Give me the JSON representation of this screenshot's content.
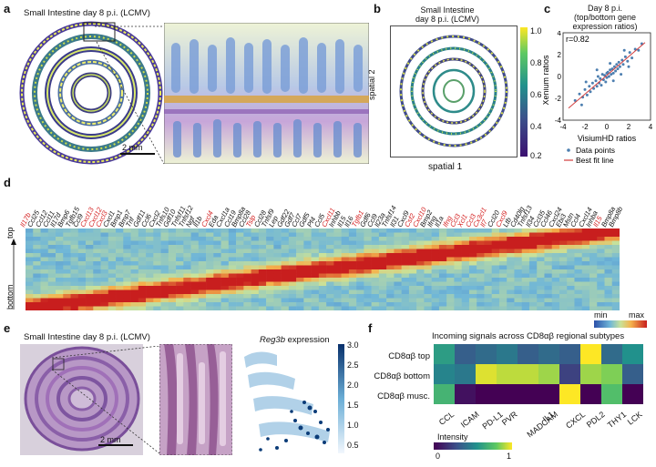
{
  "panels": {
    "a": {
      "label": "a",
      "title": "Small Intestine day 8 p.i. (LCMV)",
      "scale_bar": "2 mm"
    },
    "b": {
      "label": "b",
      "title_line1": "Small Intestine",
      "title_line2": "day 8 p.i. (LCMV)",
      "xlabel": "spatial 1",
      "ylabel": "spatial 2",
      "colorbar_ticks": [
        "1.0",
        "0.8",
        "0.6",
        "0.4",
        "0.2"
      ],
      "colors": {
        "low": "#3b0f70",
        "mid": "#21918c",
        "high": "#fde725"
      }
    },
    "c": {
      "label": "c",
      "title_line1": "Day 8 p.i.",
      "title_line2": "(top/bottom gene",
      "title_line3": "expression ratios)",
      "annotation": "r=0.82",
      "legend_points": "Data points",
      "legend_line": "Best fit line"
    },
    "d": {
      "label": "d",
      "top_label": "top",
      "bottom_label": "bottom",
      "legend_min": "min",
      "legend_max": "max",
      "genes": [
        {
          "name": "Il17b",
          "red": true
        },
        {
          "name": "Ccl25",
          "red": false
        },
        {
          "name": "Ccl12",
          "red": false
        },
        {
          "name": "Ccl11",
          "red": false
        },
        {
          "name": "Il17d",
          "red": false
        },
        {
          "name": "Bmp6",
          "red": false
        },
        {
          "name": "Tgfb15",
          "red": false
        },
        {
          "name": "Ccl9",
          "red": false
        },
        {
          "name": "Cxcl13",
          "red": true
        },
        {
          "name": "Cxcl12",
          "red": true
        },
        {
          "name": "Cxcl3",
          "red": true
        },
        {
          "name": "Cxcl1",
          "red": false
        },
        {
          "name": "Bmp1",
          "red": false
        },
        {
          "name": "Bmp7",
          "red": false
        },
        {
          "name": "Tnf",
          "red": false
        },
        {
          "name": "Gdf11",
          "red": false
        },
        {
          "name": "Ccl6",
          "red": false
        },
        {
          "name": "Cxcl2",
          "red": false
        },
        {
          "name": "Tnfs10",
          "red": false
        },
        {
          "name": "Gdf10",
          "red": false
        },
        {
          "name": "Tnfsf11",
          "red": false
        },
        {
          "name": "Tnfsf12",
          "red": false
        },
        {
          "name": "Ngf",
          "red": false
        },
        {
          "name": "Il1b",
          "red": false
        },
        {
          "name": "Cxcl4",
          "red": true
        },
        {
          "name": "Eda",
          "red": false
        },
        {
          "name": "Cxcl1a",
          "red": false
        },
        {
          "name": "Ccl19",
          "red": false
        },
        {
          "name": "Bmp8a",
          "red": false
        },
        {
          "name": "Ccl28",
          "red": false
        },
        {
          "name": "Tslp",
          "red": true
        },
        {
          "name": "Ccl28",
          "red": false
        },
        {
          "name": "Tnfsf9",
          "red": false
        },
        {
          "name": "Lep",
          "red": false
        },
        {
          "name": "Gdf22",
          "red": false
        },
        {
          "name": "Gdf7",
          "red": false
        },
        {
          "name": "Ccl7",
          "red": false
        },
        {
          "name": "Gdf5",
          "red": false
        },
        {
          "name": "Pf4",
          "red": false
        },
        {
          "name": "Ccl5",
          "red": false
        },
        {
          "name": "Cxcl11",
          "red": true
        },
        {
          "name": "Inhbb",
          "red": false
        },
        {
          "name": "Il15",
          "red": false
        },
        {
          "name": "Il16",
          "red": false
        },
        {
          "name": "Tgfb1",
          "red": true
        },
        {
          "name": "Gdf6",
          "red": false
        },
        {
          "name": "Ccl9",
          "red": false
        },
        {
          "name": "Il23a",
          "red": false
        },
        {
          "name": "Tnfsf14",
          "red": false
        },
        {
          "name": "Il31",
          "red": false
        },
        {
          "name": "Cxcl9",
          "red": false
        },
        {
          "name": "Csf2",
          "red": true
        },
        {
          "name": "Cxcl10",
          "red": true
        },
        {
          "name": "Bmp2",
          "red": false
        },
        {
          "name": "Ifng",
          "red": false
        },
        {
          "name": "Il1a",
          "red": false
        },
        {
          "name": "Ifng",
          "red": true
        },
        {
          "name": "Ccl3",
          "red": true
        },
        {
          "name": "Xcl1",
          "red": true
        },
        {
          "name": "Ccl3",
          "red": true
        },
        {
          "name": "Cx3cl1",
          "red": true
        },
        {
          "name": "Il7",
          "red": true
        },
        {
          "name": "Ccl20",
          "red": false
        },
        {
          "name": "Cxcl9",
          "red": true
        },
        {
          "name": "Ltb",
          "red": false
        },
        {
          "name": "Cd40lg",
          "red": false
        },
        {
          "name": "Tnfsf13",
          "red": false
        },
        {
          "name": "Il34",
          "red": false
        },
        {
          "name": "Ccl35",
          "red": false
        },
        {
          "name": "Ccl46",
          "red": false
        },
        {
          "name": "Cxcl24",
          "red": false
        },
        {
          "name": "Ebi3",
          "red": false
        },
        {
          "name": "Mstn",
          "red": false
        },
        {
          "name": "Ccl4",
          "red": false
        },
        {
          "name": "Cxcl14",
          "red": false
        },
        {
          "name": "Inhba",
          "red": false
        },
        {
          "name": "Il15",
          "red": true
        },
        {
          "name": "Bmp8a",
          "red": false
        },
        {
          "name": "Bmp8b",
          "red": false
        }
      ]
    },
    "e": {
      "label": "e",
      "title": "Small Intestine day 8 p.i. (LCMV)",
      "scale_bar": "2 mm",
      "expr_gene": "Reg3b",
      "expr_suffix": " expression",
      "colorbar_ticks": [
        "3.0",
        "2.5",
        "2.0",
        "1.5",
        "1.0",
        "0.5"
      ]
    },
    "f": {
      "label": "f",
      "title": "Incoming signals across CD8αβ regional subtypes",
      "rows": [
        "CD8αβ top",
        "CD8αβ bottom",
        "CD8αβ musc."
      ],
      "cols": [
        "CCL",
        "ICAM",
        "PD-L1",
        "PVR",
        "MADCAM",
        "IL1",
        "CXCL",
        "PDL2",
        "THY1",
        "LCK"
      ],
      "values": [
        [
          0.55,
          0.3,
          0.35,
          0.4,
          0.3,
          0.35,
          0.3,
          1.0,
          0.35,
          0.5
        ],
        [
          0.45,
          0.4,
          0.95,
          0.9,
          0.9,
          0.85,
          0.2,
          0.85,
          0.8,
          0.3
        ],
        [
          0.65,
          0.05,
          0.0,
          0.0,
          0.0,
          0.0,
          1.0,
          0.0,
          0.7,
          0.0
        ]
      ],
      "legend_title": "Intensity",
      "legend_min": "0",
      "legend_max": "1"
    }
  },
  "chart_data": {
    "type": "scatter",
    "title": "Day 8 p.i. (top/bottom gene expression ratios)",
    "xlabel": "VisiumHD ratios",
    "ylabel": "Xenium ratios",
    "xlim": [
      -4,
      4
    ],
    "ylim": [
      -4,
      4
    ],
    "x_ticks": [
      "-4",
      "-2",
      "0",
      "2",
      "4"
    ],
    "y_ticks": [
      "-4",
      "-2",
      "0",
      "2",
      "4"
    ],
    "r": 0.82,
    "fit": {
      "slope": 0.85,
      "intercept": 0.1
    },
    "series": [
      {
        "name": "Data points",
        "points": [
          [
            -2.9,
            -2.2
          ],
          [
            -2.5,
            -1.6
          ],
          [
            -2.2,
            -1.9
          ],
          [
            -2.0,
            -1.2
          ],
          [
            -1.8,
            -1.7
          ],
          [
            -1.6,
            -0.9
          ],
          [
            -1.5,
            -1.4
          ],
          [
            -1.3,
            -0.6
          ],
          [
            -1.2,
            -1.1
          ],
          [
            -1.0,
            -0.4
          ],
          [
            -0.9,
            -0.9
          ],
          [
            -0.8,
            0.0
          ],
          [
            -0.7,
            -0.6
          ],
          [
            -0.6,
            -0.2
          ],
          [
            -0.5,
            -0.8
          ],
          [
            -0.4,
            0.2
          ],
          [
            -0.3,
            -0.3
          ],
          [
            -0.2,
            0.1
          ],
          [
            -0.1,
            -0.5
          ],
          [
            0.0,
            0.3
          ],
          [
            0.0,
            -0.1
          ],
          [
            0.1,
            0.4
          ],
          [
            0.2,
            0.0
          ],
          [
            0.3,
            0.6
          ],
          [
            0.4,
            0.2
          ],
          [
            0.5,
            0.7
          ],
          [
            0.6,
            0.3
          ],
          [
            0.7,
            0.9
          ],
          [
            0.8,
            0.5
          ],
          [
            0.9,
            1.1
          ],
          [
            1.0,
            0.7
          ],
          [
            1.1,
            1.3
          ],
          [
            1.2,
            0.9
          ],
          [
            1.4,
            1.5
          ],
          [
            1.5,
            1.1
          ],
          [
            1.7,
            1.8
          ],
          [
            1.9,
            1.4
          ],
          [
            2.1,
            2.2
          ],
          [
            2.3,
            1.7
          ],
          [
            2.6,
            2.5
          ],
          [
            2.9,
            2.4
          ],
          [
            3.2,
            3.0
          ],
          [
            -1.9,
            -0.5
          ],
          [
            0.6,
            -0.4
          ],
          [
            1.3,
            0.2
          ],
          [
            -0.9,
            0.6
          ],
          [
            2.0,
            0.9
          ],
          [
            -2.3,
            -2.6
          ],
          [
            0.3,
            1.2
          ],
          [
            1.6,
            2.4
          ]
        ]
      },
      {
        "name": "Best fit line",
        "values": [
          [
            -3.5,
            -2.9
          ],
          [
            3.5,
            3.1
          ]
        ]
      }
    ]
  }
}
